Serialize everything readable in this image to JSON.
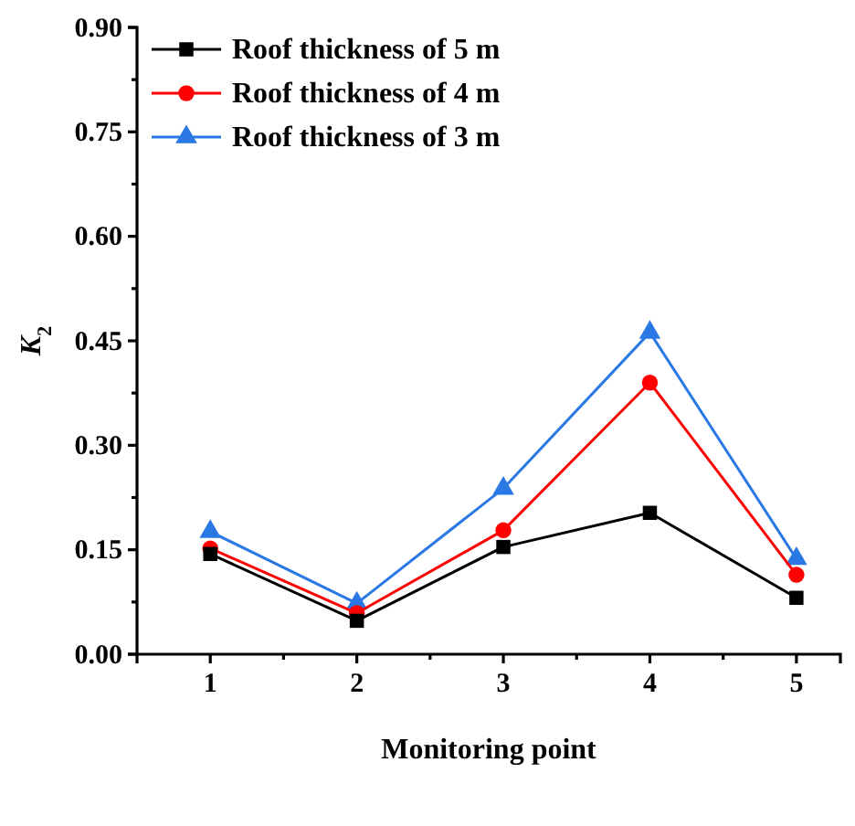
{
  "chart_data": {
    "type": "line",
    "xlabel": "Monitoring point",
    "ylabel": "K$_{2}$",
    "x": [
      1,
      2,
      3,
      4,
      5
    ],
    "xlim": [
      0.5,
      5.3
    ],
    "xticks": [
      1,
      {
        "value": 1.5,
        "label": null
      },
      2,
      {
        "value": 2.5,
        "label": null
      },
      3,
      {
        "value": 3.5,
        "label": null
      },
      4,
      {
        "value": 4.5,
        "label": null
      },
      5
    ],
    "ylim": [
      0,
      0.9
    ],
    "yticks": [
      {
        "value": 0,
        "label": "0.00"
      },
      {
        "value": 0.075,
        "label": null
      },
      {
        "value": 0.15,
        "label": "0.15"
      },
      {
        "value": 0.225,
        "label": null
      },
      {
        "value": 0.3,
        "label": "0.30"
      },
      {
        "value": 0.375,
        "label": null
      },
      {
        "value": 0.45,
        "label": "0.45"
      },
      {
        "value": 0.525,
        "label": null
      },
      {
        "value": 0.6,
        "label": "0.60"
      },
      {
        "value": 0.675,
        "label": null
      },
      {
        "value": 0.75,
        "label": "0.75"
      },
      {
        "value": 0.825,
        "label": null
      },
      {
        "value": 0.9,
        "label": "0.90"
      }
    ],
    "legend": "top left",
    "grid": false,
    "series": [
      {
        "name": "Roof thickness of 5 m",
        "color": "#000000",
        "marker": "square",
        "values": [
          0.144,
          0.048,
          0.154,
          0.203,
          0.081
        ]
      },
      {
        "name": "Roof thickness of 4 m",
        "color": "#ff0000",
        "marker": "circle",
        "values": [
          0.152,
          0.059,
          0.178,
          0.39,
          0.114
        ]
      },
      {
        "name": "Roof thickness of 3 m",
        "color": "#2a78e4",
        "marker": "triangle",
        "values": [
          0.176,
          0.073,
          0.238,
          0.462,
          0.137
        ]
      }
    ]
  }
}
